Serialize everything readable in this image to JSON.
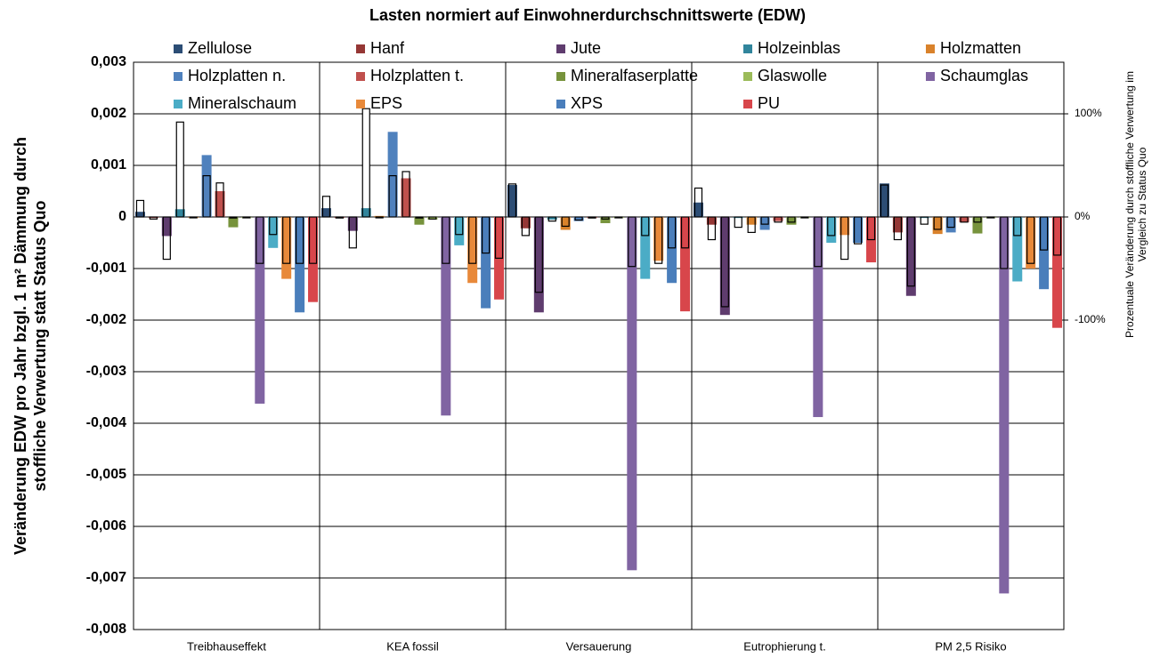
{
  "chart_data": {
    "type": "bar",
    "title": "Lasten normiert auf Einwohnerdurchschnittswerte (EDW)",
    "ylabel": [
      "Veränderung EDW pro Jahr bzgl. 1 m² Dämmung durch",
      "stoffliche Verwertung statt Status Quo"
    ],
    "y2label": [
      "Prozentuale Veränderung durch stoffliche Verwertung im",
      "Vergleich zu Status Quo"
    ],
    "categories": [
      "Treibhauseffekt",
      "KEA fossil",
      "Versauerung",
      "Eutrophierung t.",
      "PM 2,5 Risiko"
    ],
    "ylim": [
      -0.008,
      0.003
    ],
    "yticks": [
      {
        "value": 0.003,
        "label": "0,003"
      },
      {
        "value": 0.002,
        "label": "0,002"
      },
      {
        "value": 0.001,
        "label": "0,001"
      },
      0,
      {
        "value": -0.001,
        "label": "-0,001"
      },
      {
        "value": -0.002,
        "label": "-0,002"
      },
      {
        "value": -0.003,
        "label": "-0,003"
      },
      {
        "value": -0.004,
        "label": "-0,004"
      },
      {
        "value": -0.005,
        "label": "-0,005"
      },
      {
        "value": -0.006,
        "label": "-0,006"
      },
      {
        "value": -0.007,
        "label": "-0,007"
      },
      {
        "value": -0.008,
        "label": "-0,008"
      }
    ],
    "y2lim": [
      -400,
      150
    ],
    "y2ticks": [
      {
        "value": 100,
        "label": "100%"
      },
      {
        "value": 0,
        "label": "0%"
      },
      {
        "value": -100,
        "label": "-100%"
      }
    ],
    "grid": true,
    "series": [
      {
        "name": "Zellulose",
        "color": "#2c4d75",
        "values": [
          0.0001,
          0.00017,
          0.00062,
          0.00028,
          0.00065
        ]
      },
      {
        "name": "Hanf",
        "color": "#953735",
        "values": [
          -2e-05,
          -2e-05,
          -0.00022,
          -0.00015,
          -0.0003
        ]
      },
      {
        "name": "Jute",
        "color": "#5f3c6e",
        "values": [
          -0.00037,
          -0.00027,
          -0.00185,
          -0.0019,
          -0.00153
        ]
      },
      {
        "name": "Holzeinblas",
        "color": "#31859c",
        "values": [
          0.00015,
          0.00017,
          -5e-05,
          -2e-05,
          -2e-05
        ]
      },
      {
        "name": "Holzmatten",
        "color": "#d9822b",
        "values": [
          -2e-05,
          2e-05,
          -0.00025,
          -0.00015,
          -0.00033
        ]
      },
      {
        "name": "Holzplatten n.",
        "color": "#4f81bd",
        "values": [
          0.0012,
          0.00165,
          -8e-05,
          -0.00025,
          -0.0003
        ]
      },
      {
        "name": "Holzplatten t.",
        "color": "#c0504d",
        "values": [
          0.0005,
          0.00075,
          -2e-05,
          -8e-05,
          -0.0001
        ]
      },
      {
        "name": "Mineralfaserplatte",
        "color": "#77933c",
        "values": [
          -0.0002,
          -0.00015,
          -0.00012,
          -0.00015,
          -0.00032
        ]
      },
      {
        "name": "Glaswolle",
        "color": "#9bbb59",
        "values": [
          -2e-05,
          -5e-05,
          -2e-05,
          -2e-05,
          -2e-05
        ]
      },
      {
        "name": "Schaumglas",
        "color": "#8064a2",
        "values": [
          -0.00362,
          -0.00385,
          -0.00685,
          -0.00388,
          -0.0073
        ]
      },
      {
        "name": "Mineralschaum",
        "color": "#4bacc6",
        "values": [
          -0.0006,
          -0.00055,
          -0.0012,
          -0.0005,
          -0.00125
        ]
      },
      {
        "name": "EPS",
        "color": "#e8893a",
        "values": [
          -0.0012,
          -0.00128,
          -0.00085,
          -0.00035,
          -0.001
        ]
      },
      {
        "name": "XPS",
        "color": "#4a7ebb",
        "values": [
          -0.00185,
          -0.00177,
          -0.00128,
          -0.0005,
          -0.0014
        ]
      },
      {
        "name": "PU",
        "color": "#d8464b",
        "values": [
          -0.00165,
          -0.0016,
          -0.00183,
          -0.00088,
          -0.00215
        ]
      },
      {
        "axis": "y2",
        "color": "#ffffff",
        "values": [
          16,
          20,
          32,
          28,
          31
        ]
      },
      {
        "axis": "y2",
        "color": "#ffffff",
        "values": [
          -2,
          -1,
          -18,
          -22,
          -22
        ]
      },
      {
        "axis": "y2",
        "color": "#ffffff",
        "values": [
          -41,
          -30,
          -73,
          -87,
          -67
        ]
      },
      {
        "axis": "y2",
        "color": "#ffffff",
        "values": [
          92,
          105,
          -4,
          -10,
          -7
        ]
      },
      {
        "axis": "y2",
        "color": "#ffffff",
        "values": [
          0,
          0,
          -9,
          -15,
          -12
        ]
      },
      {
        "axis": "y2",
        "color": "#ffffff",
        "values": [
          40,
          40,
          -3,
          -7,
          -10
        ]
      },
      {
        "axis": "y2",
        "color": "#ffffff",
        "values": [
          33,
          44,
          -1,
          -5,
          -5
        ]
      },
      {
        "axis": "y2",
        "color": "#ffffff",
        "values": [
          -1,
          -1,
          -2,
          -5,
          -5
        ]
      },
      {
        "axis": "y2",
        "color": "#ffffff",
        "values": [
          0,
          -2,
          0,
          0,
          0
        ]
      },
      {
        "axis": "y2",
        "color": "#ffffff",
        "values": [
          -45,
          -45,
          -48,
          -48,
          -50
        ]
      },
      {
        "axis": "y2",
        "color": "#ffffff",
        "values": [
          -17,
          -17,
          -18,
          -18,
          -18
        ]
      },
      {
        "axis": "y2",
        "color": "#ffffff",
        "values": [
          -45,
          -45,
          -45,
          -41,
          -45
        ]
      },
      {
        "axis": "y2",
        "color": "#ffffff",
        "values": [
          -45,
          -35,
          -30,
          -26,
          -32
        ]
      },
      {
        "axis": "y2",
        "color": "#ffffff",
        "values": [
          -45,
          -40,
          -30,
          -22,
          -37
        ]
      }
    ]
  }
}
